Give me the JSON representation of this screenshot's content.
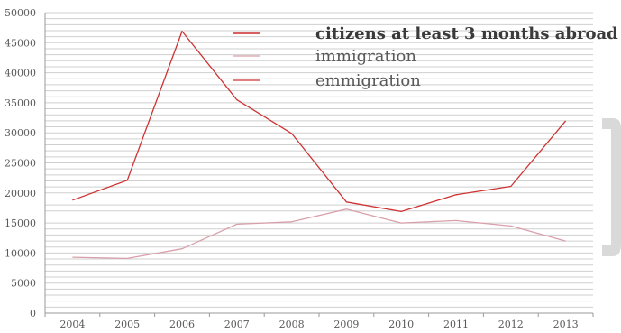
{
  "chart_data": {
    "type": "line",
    "categories": [
      "2004",
      "2005",
      "2006",
      "2007",
      "2008",
      "2009",
      "2010",
      "2011",
      "2012",
      "2013"
    ],
    "ylim": [
      0,
      50000
    ],
    "y_ticks": [
      0,
      5000,
      10000,
      15000,
      20000,
      25000,
      30000,
      35000,
      40000,
      45000,
      50000
    ],
    "grid": true,
    "legend_position": "top-right",
    "series": [
      {
        "name": "citizens at least 3 months abroad",
        "color": "#c00000",
        "values": [
          null,
          null,
          null,
          null,
          null,
          null,
          null,
          null,
          null,
          null
        ]
      },
      {
        "name": "immigration",
        "color": "#d9a0ab",
        "values": [
          9300,
          9100,
          10700,
          14800,
          15200,
          17300,
          15000,
          15400,
          14500,
          12000
        ]
      },
      {
        "name": "emmigration",
        "color": "#cf3232",
        "values": [
          18800,
          22100,
          46900,
          35500,
          29900,
          18500,
          16900,
          19700,
          21100,
          32000
        ]
      }
    ]
  }
}
